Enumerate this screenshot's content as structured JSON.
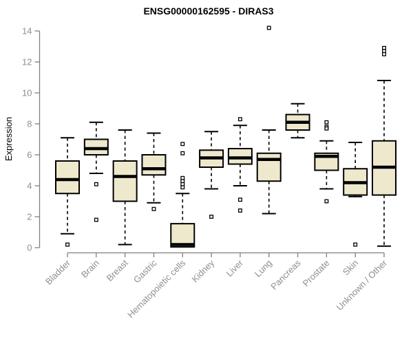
{
  "chart_data": {
    "type": "boxplot",
    "title": "ENSG00000162595 - DIRAS3",
    "ylabel": "Expression",
    "xlabel": "",
    "ylim": [
      0,
      14
    ],
    "yticks": [
      0,
      2,
      4,
      6,
      8,
      10,
      12,
      14
    ],
    "grid": false,
    "legend": false,
    "categories": [
      "Bladder",
      "Brain",
      "Breast",
      "Gastric",
      "Hematopoietic cells",
      "Kidney",
      "Liver",
      "Lung",
      "Pancreas",
      "Prostate",
      "Skin",
      "Unknown / Other"
    ],
    "series": [
      {
        "name": "Bladder",
        "whisker_low": 0.9,
        "q1": 3.5,
        "median": 4.4,
        "q3": 5.6,
        "whisker_high": 7.1,
        "outliers": [
          0.2
        ]
      },
      {
        "name": "Brain",
        "whisker_low": 4.8,
        "q1": 6.0,
        "median": 6.4,
        "q3": 7.0,
        "whisker_high": 8.1,
        "outliers": [
          4.1,
          1.8
        ]
      },
      {
        "name": "Breast",
        "whisker_low": 0.2,
        "q1": 3.0,
        "median": 4.6,
        "q3": 5.6,
        "whisker_high": 7.6,
        "outliers": []
      },
      {
        "name": "Gastric",
        "whisker_low": 2.9,
        "q1": 4.7,
        "median": 5.1,
        "q3": 6.0,
        "whisker_high": 7.4,
        "outliers": [
          2.5
        ]
      },
      {
        "name": "Hematopoietic cells",
        "whisker_low": 0.05,
        "q1": 0.05,
        "median": 0.2,
        "q3": 1.55,
        "whisker_high": 3.5,
        "outliers": [
          6.7,
          6.1,
          4.5,
          4.3,
          4.1,
          3.9
        ]
      },
      {
        "name": "Kidney",
        "whisker_low": 3.8,
        "q1": 5.2,
        "median": 5.8,
        "q3": 6.3,
        "whisker_high": 7.5,
        "outliers": [
          2.0
        ]
      },
      {
        "name": "Liver",
        "whisker_low": 4.0,
        "q1": 5.4,
        "median": 5.8,
        "q3": 6.4,
        "whisker_high": 7.9,
        "outliers": [
          8.3,
          3.1,
          2.4
        ]
      },
      {
        "name": "Lung",
        "whisker_low": 2.2,
        "q1": 4.3,
        "median": 5.7,
        "q3": 6.1,
        "whisker_high": 7.6,
        "outliers": [
          14.2
        ]
      },
      {
        "name": "Pancreas",
        "whisker_low": 7.1,
        "q1": 7.6,
        "median": 8.1,
        "q3": 8.6,
        "whisker_high": 9.3,
        "outliers": []
      },
      {
        "name": "Prostate",
        "whisker_low": 3.8,
        "q1": 5.0,
        "median": 5.9,
        "q3": 6.1,
        "whisker_high": 6.9,
        "outliers": [
          8.1,
          7.8,
          7.7,
          3.0
        ]
      },
      {
        "name": "Skin",
        "whisker_low": 3.3,
        "q1": 3.4,
        "median": 4.2,
        "q3": 5.1,
        "whisker_high": 6.8,
        "outliers": [
          0.2
        ]
      },
      {
        "name": "Unknown / Other",
        "whisker_low": 0.1,
        "q1": 3.4,
        "median": 5.2,
        "q3": 6.9,
        "whisker_high": 10.8,
        "outliers": [
          12.9,
          12.7,
          12.5
        ]
      }
    ],
    "colors": {
      "box_fill": "#eee8cd",
      "box_stroke": "#000000",
      "median": "#000000",
      "whisker": "#000000",
      "outlier_fill": "#ffffff",
      "axis_line": "#7f7f7f",
      "tick_text": "#8e8e8e",
      "title_text": "#000000"
    }
  }
}
